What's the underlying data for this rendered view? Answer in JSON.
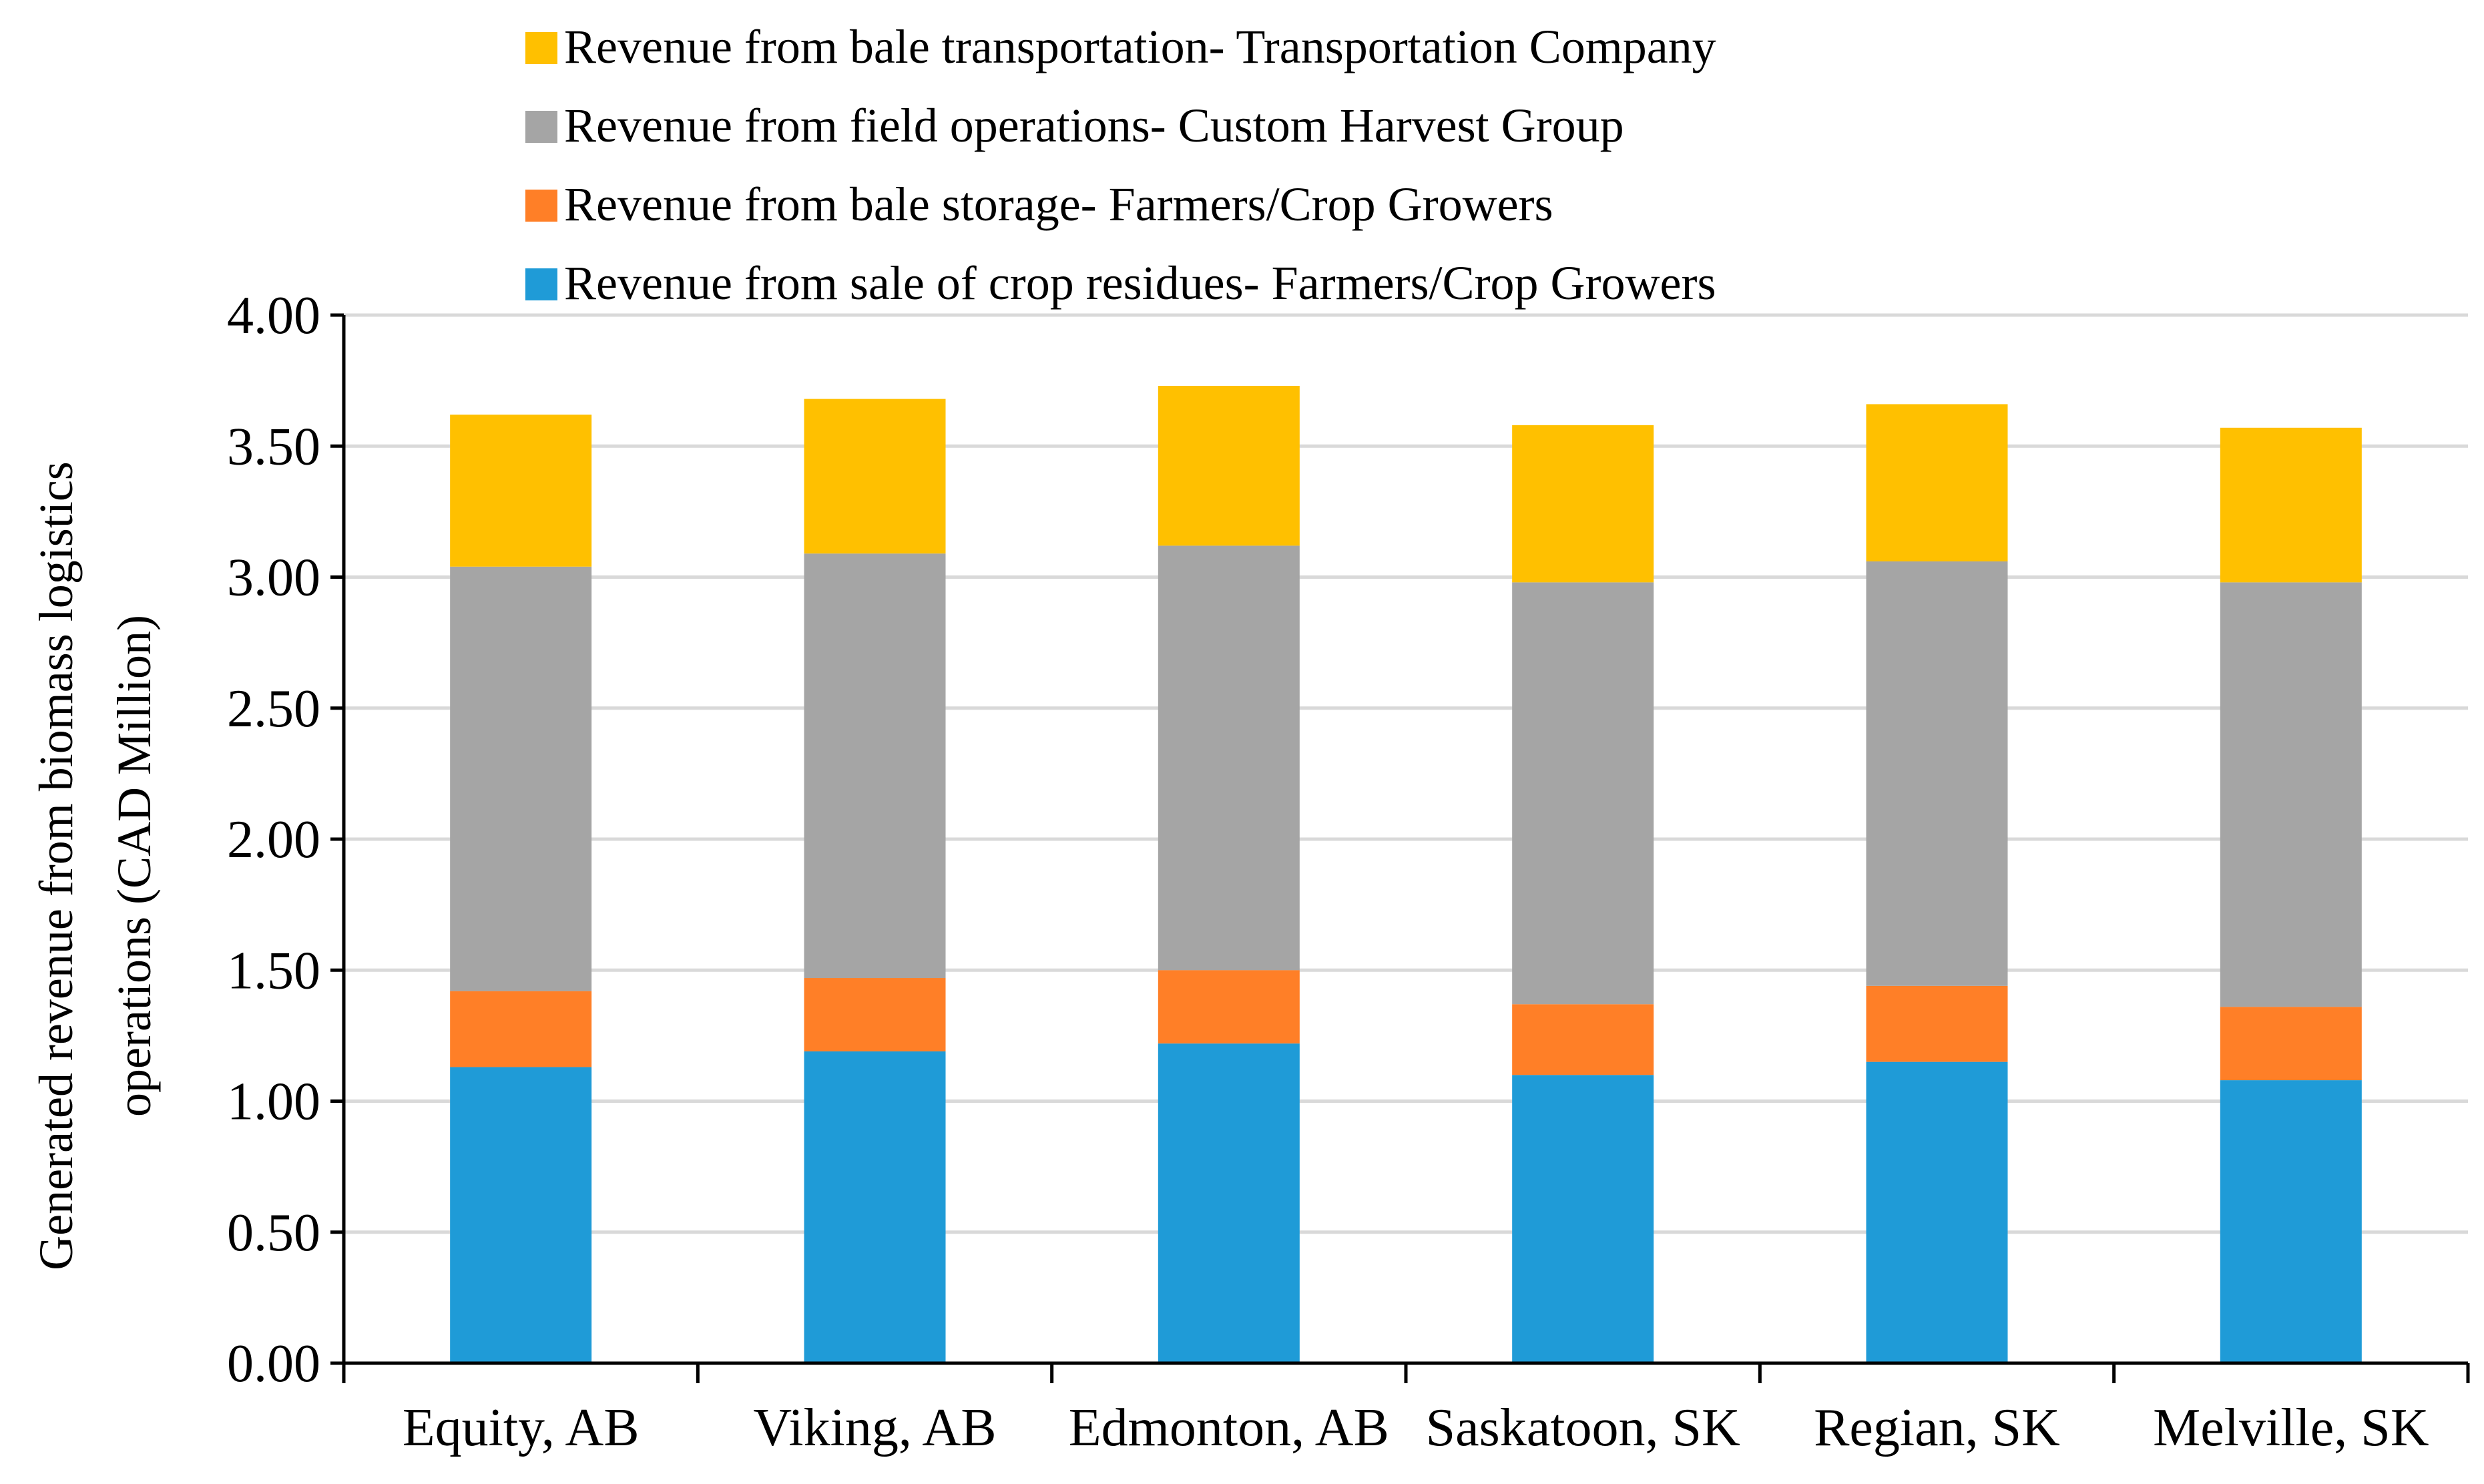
{
  "chart_data": {
    "type": "bar",
    "stacked": true,
    "title": "",
    "xlabel": "",
    "ylabel": [
      "Generated revenue from biomass logistics",
      "operations (CAD Million)"
    ],
    "ylim": [
      0,
      4
    ],
    "ytick_step": 0.5,
    "ytick_labels": [
      "0.00",
      "0.50",
      "1.00",
      "1.50",
      "2.00",
      "2.50",
      "3.00",
      "3.50",
      "4.00"
    ],
    "grid": true,
    "legend_position": "top",
    "categories": [
      "Equity, AB",
      "Viking, AB",
      "Edmonton, AB",
      "Saskatoon, SK",
      "Regian, SK",
      "Melville, SK"
    ],
    "series": [
      {
        "name": "Revenue from sale of crop residues- Farmers/Crop Growers",
        "color": "#1F9BD7",
        "values": [
          1.13,
          1.19,
          1.22,
          1.1,
          1.15,
          1.08
        ]
      },
      {
        "name": "Revenue from bale storage- Farmers/Crop Growers",
        "color": "#FF7F27",
        "values": [
          0.29,
          0.28,
          0.28,
          0.27,
          0.29,
          0.28
        ]
      },
      {
        "name": "Revenue from field operations- Custom Harvest Group",
        "color": "#A5A5A5",
        "values": [
          1.62,
          1.62,
          1.62,
          1.61,
          1.62,
          1.62
        ]
      },
      {
        "name": "Revenue from bale transportation- Transportation Company",
        "color": "#FFC000",
        "values": [
          0.58,
          0.59,
          0.61,
          0.6,
          0.6,
          0.59
        ]
      }
    ],
    "legend_order": [
      3,
      2,
      1,
      0
    ]
  },
  "colors": {
    "gridline": "#D9D9D9",
    "axis": "#000000"
  }
}
